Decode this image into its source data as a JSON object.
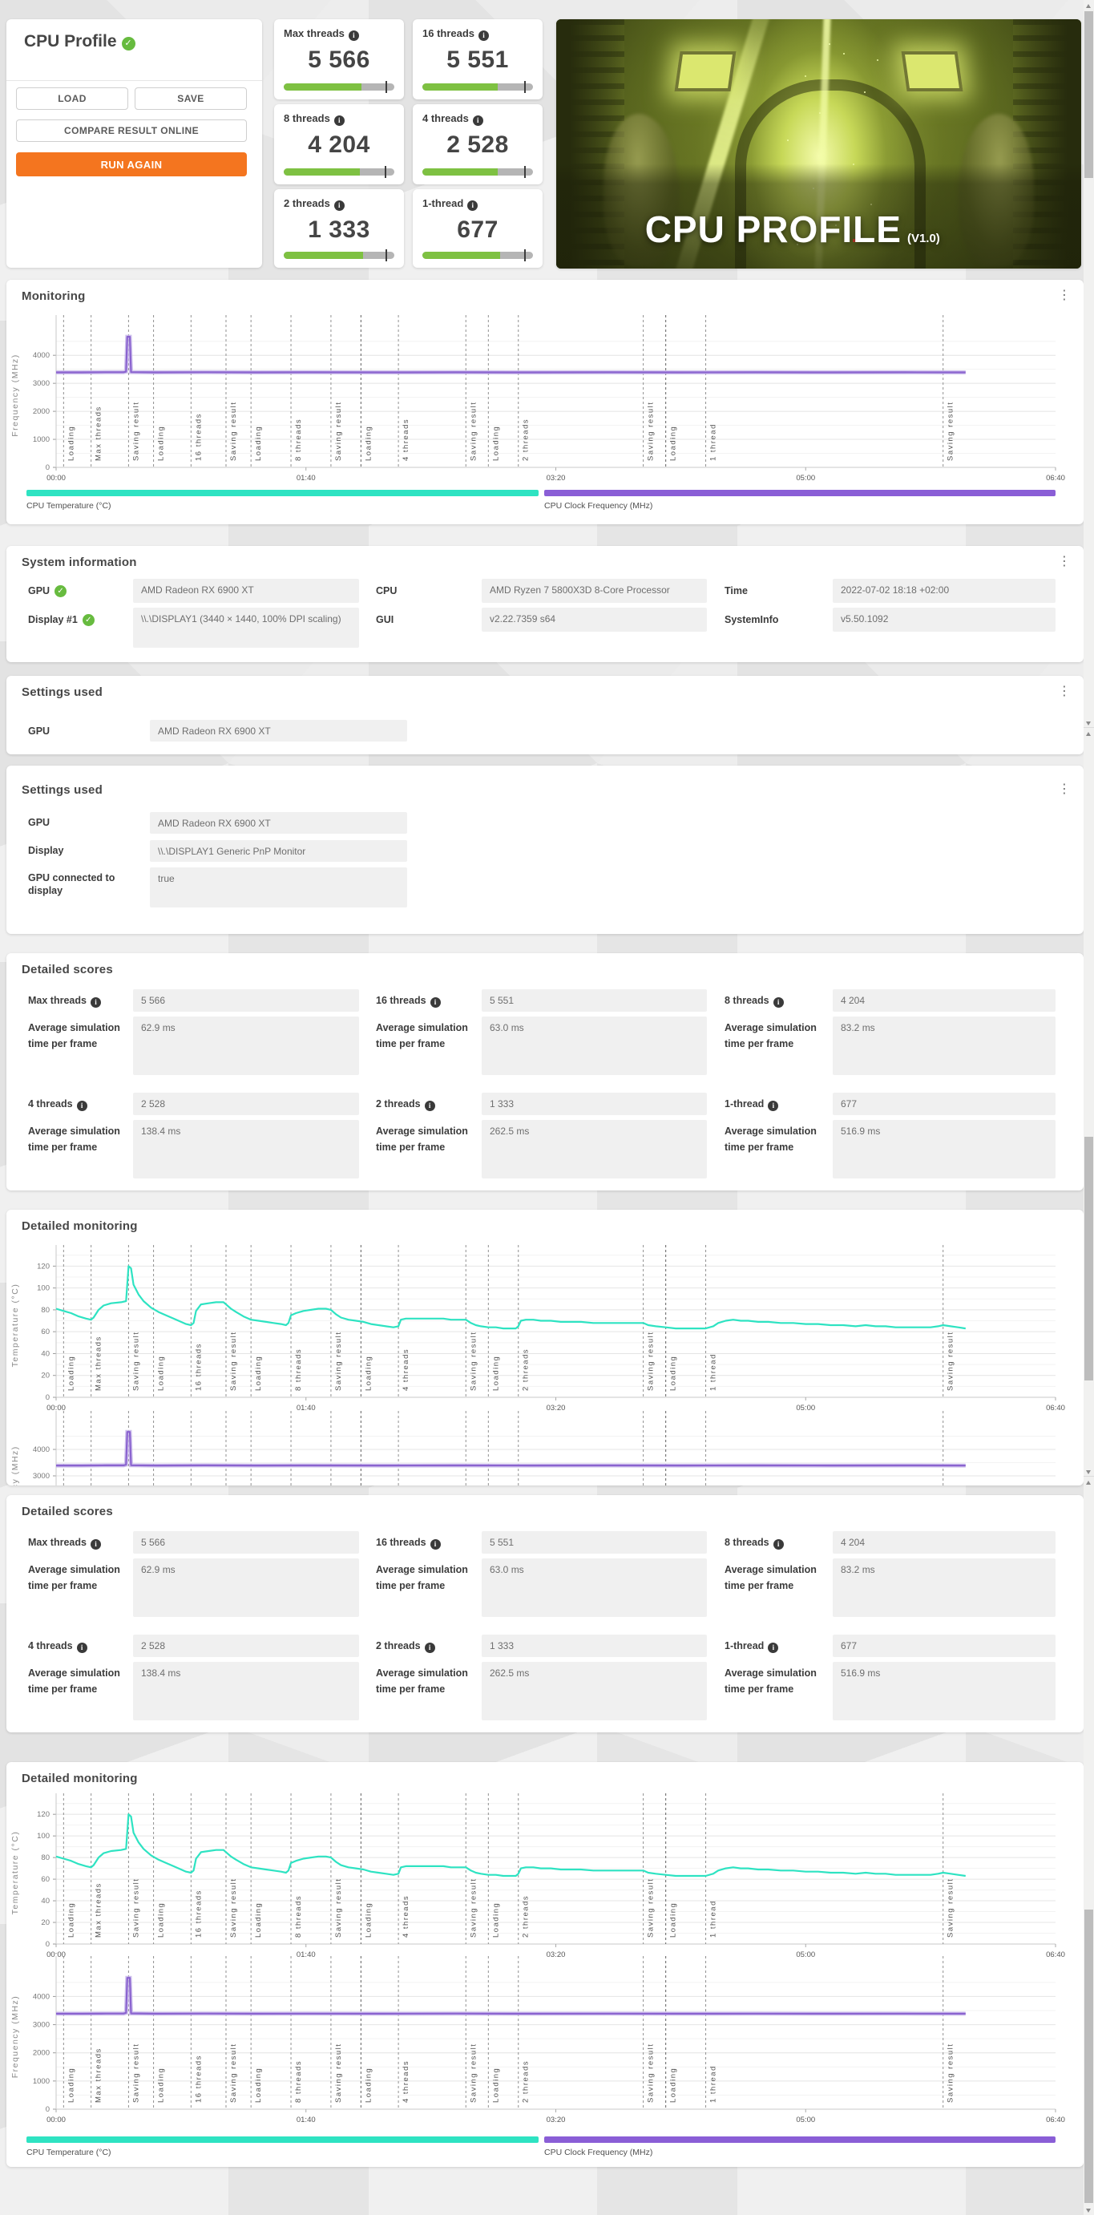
{
  "profile_card": {
    "title": "CPU Profile",
    "buttons": {
      "load": "LOAD",
      "save": "SAVE",
      "compare": "COMPARE RESULT ONLINE",
      "run_again": "RUN AGAIN"
    }
  },
  "score_tiles": [
    {
      "label": "Max threads",
      "score": "5 566",
      "bar_fill": 0.7,
      "bar_marker": 0.92
    },
    {
      "label": "16 threads",
      "score": "5 551",
      "bar_fill": 0.68,
      "bar_marker": 0.92
    },
    {
      "label": "8 threads",
      "score": "4 204",
      "bar_fill": 0.69,
      "bar_marker": 0.91
    },
    {
      "label": "4 threads",
      "score": "2 528",
      "bar_fill": 0.68,
      "bar_marker": 0.92
    },
    {
      "label": "2 threads",
      "score": "1 333",
      "bar_fill": 0.72,
      "bar_marker": 0.92
    },
    {
      "label": "1-thread",
      "score": "677",
      "bar_fill": 0.7,
      "bar_marker": 0.92
    }
  ],
  "hero": {
    "title": "CPU PROFILE",
    "version": "(V1.0)"
  },
  "monitoring": {
    "title": "Monitoring"
  },
  "system_information": {
    "title": "System information",
    "fields": [
      {
        "label": "GPU",
        "value": "AMD Radeon RX 6900 XT",
        "checked": true,
        "col": 0,
        "row": 0
      },
      {
        "label": "CPU",
        "value": "AMD Ryzen 7 5800X3D 8-Core Processor",
        "col": 1,
        "row": 0
      },
      {
        "label": "Time",
        "value": "2022-07-02 18:18 +02:00",
        "col": 2,
        "row": 0
      },
      {
        "label": "Display #1",
        "value": "\\\\.\\DISPLAY1 (3440 × 1440, 100% DPI scaling)",
        "checked": true,
        "col": 0,
        "row": 1,
        "tall": true
      },
      {
        "label": "GUI",
        "value": "v2.22.7359 s64",
        "col": 1,
        "row": 1
      },
      {
        "label": "SystemInfo",
        "value": "v5.50.1092",
        "col": 2,
        "row": 1
      }
    ]
  },
  "settings_used_1": {
    "title": "Settings used",
    "fields": [
      {
        "label": "GPU",
        "value": "AMD Radeon RX 6900 XT"
      }
    ]
  },
  "settings_used_2": {
    "title": "Settings used",
    "fields": [
      {
        "label": "GPU",
        "value": "AMD Radeon RX 6900 XT"
      },
      {
        "label": "Display",
        "value": "\\\\.\\DISPLAY1 Generic PnP Monitor"
      },
      {
        "label": "GPU connected to display",
        "value": "true",
        "tall": true
      }
    ]
  },
  "detailed_scores": {
    "title": "Detailed scores",
    "avg_label": "Average simulation time per frame",
    "entries": [
      {
        "label": "Max threads",
        "score": "5 566",
        "avg": "62.9 ms"
      },
      {
        "label": "16 threads",
        "score": "5 551",
        "avg": "63.0 ms"
      },
      {
        "label": "8 threads",
        "score": "4 204",
        "avg": "83.2 ms"
      },
      {
        "label": "4 threads",
        "score": "2 528",
        "avg": "138.4 ms"
      },
      {
        "label": "2 threads",
        "score": "1 333",
        "avg": "262.5 ms"
      },
      {
        "label": "1-thread",
        "score": "677",
        "avg": "516.9 ms"
      }
    ]
  },
  "detailed_monitoring": {
    "title": "Detailed monitoring"
  },
  "colors": {
    "accent_orange": "#f4751f",
    "bar_green": "#7ec142",
    "check_green": "#67bb3f",
    "temperature": "#2ee3c2",
    "frequency": "#8a63cf",
    "frequency_underlay": "#c3b2e8"
  },
  "chart_data": {
    "type": "line",
    "x_max_seconds": 400,
    "x_ticks": [
      {
        "label": "00:00",
        "t": 0
      },
      {
        "label": "01:40",
        "t": 100
      },
      {
        "label": "03:20",
        "t": 200
      },
      {
        "label": "05:00",
        "t": 300
      },
      {
        "label": "06:40",
        "t": 400
      }
    ],
    "events": [
      {
        "label": "Loading",
        "t": 3
      },
      {
        "label": "Max threads",
        "t": 14
      },
      {
        "label": "Saving result",
        "t": 29
      },
      {
        "label": "Loading",
        "t": 39
      },
      {
        "label": "16 threads",
        "t": 54
      },
      {
        "label": "Saving result",
        "t": 68
      },
      {
        "label": "Loading",
        "t": 78
      },
      {
        "label": "8 threads",
        "t": 94
      },
      {
        "label": "Saving result",
        "t": 110
      },
      {
        "label": "Loading",
        "t": 122,
        "strong": true
      },
      {
        "label": "4 threads",
        "t": 137
      },
      {
        "label": "Saving result",
        "t": 164
      },
      {
        "label": "Loading",
        "t": 173
      },
      {
        "label": "2 threads",
        "t": 185
      },
      {
        "label": "Saving result",
        "t": 235
      },
      {
        "label": "Loading",
        "t": 244,
        "strong": true
      },
      {
        "label": "1 thread",
        "t": 260
      },
      {
        "label": "Saving result",
        "t": 355
      }
    ],
    "series": {
      "temperature": {
        "legend": "CPU Temperature (°C)",
        "unit": "°C",
        "color": "#2ee3c2",
        "points": [
          [
            0,
            81
          ],
          [
            3,
            79
          ],
          [
            6,
            77
          ],
          [
            9,
            74
          ],
          [
            12,
            72
          ],
          [
            14,
            71
          ],
          [
            15,
            73
          ],
          [
            17,
            80
          ],
          [
            19,
            84
          ],
          [
            22,
            86
          ],
          [
            26,
            87
          ],
          [
            28,
            88
          ],
          [
            29,
            120
          ],
          [
            30,
            118
          ],
          [
            31,
            103
          ],
          [
            33,
            94
          ],
          [
            35,
            88
          ],
          [
            38,
            82
          ],
          [
            41,
            78
          ],
          [
            44,
            75
          ],
          [
            47,
            72
          ],
          [
            50,
            69
          ],
          [
            52,
            67
          ],
          [
            54,
            66
          ],
          [
            55,
            68
          ],
          [
            56,
            79
          ],
          [
            58,
            85
          ],
          [
            61,
            86
          ],
          [
            64,
            87
          ],
          [
            67,
            87
          ],
          [
            68,
            85
          ],
          [
            70,
            81
          ],
          [
            72,
            78
          ],
          [
            75,
            74
          ],
          [
            78,
            71
          ],
          [
            81,
            70
          ],
          [
            84,
            69
          ],
          [
            87,
            68
          ],
          [
            90,
            67
          ],
          [
            92,
            66
          ],
          [
            93,
            68
          ],
          [
            94,
            75
          ],
          [
            96,
            77
          ],
          [
            99,
            79
          ],
          [
            102,
            80
          ],
          [
            105,
            81
          ],
          [
            108,
            81
          ],
          [
            110,
            80
          ],
          [
            112,
            76
          ],
          [
            114,
            73
          ],
          [
            117,
            71
          ],
          [
            120,
            70
          ],
          [
            123,
            69
          ],
          [
            126,
            67
          ],
          [
            129,
            66
          ],
          [
            132,
            65
          ],
          [
            135,
            64
          ],
          [
            137,
            65
          ],
          [
            138,
            71
          ],
          [
            140,
            72
          ],
          [
            145,
            72
          ],
          [
            150,
            72
          ],
          [
            155,
            72
          ],
          [
            158,
            71
          ],
          [
            162,
            71
          ],
          [
            164,
            71
          ],
          [
            166,
            68
          ],
          [
            168,
            66
          ],
          [
            170,
            65
          ],
          [
            173,
            64
          ],
          [
            176,
            64
          ],
          [
            179,
            63
          ],
          [
            182,
            63
          ],
          [
            184,
            63
          ],
          [
            185,
            65
          ],
          [
            186,
            70
          ],
          [
            188,
            71
          ],
          [
            191,
            71
          ],
          [
            194,
            70
          ],
          [
            198,
            70
          ],
          [
            202,
            69
          ],
          [
            206,
            69
          ],
          [
            210,
            69
          ],
          [
            215,
            68
          ],
          [
            220,
            68
          ],
          [
            225,
            68
          ],
          [
            230,
            68
          ],
          [
            235,
            68
          ],
          [
            237,
            66
          ],
          [
            240,
            65
          ],
          [
            244,
            64
          ],
          [
            248,
            63
          ],
          [
            252,
            63
          ],
          [
            256,
            63
          ],
          [
            260,
            63
          ],
          [
            263,
            65
          ],
          [
            265,
            68
          ],
          [
            268,
            70
          ],
          [
            271,
            71
          ],
          [
            274,
            70
          ],
          [
            277,
            70
          ],
          [
            281,
            69
          ],
          [
            285,
            69
          ],
          [
            290,
            68
          ],
          [
            295,
            68
          ],
          [
            300,
            67
          ],
          [
            305,
            67
          ],
          [
            310,
            66
          ],
          [
            315,
            66
          ],
          [
            320,
            65
          ],
          [
            324,
            66
          ],
          [
            328,
            65
          ],
          [
            332,
            65
          ],
          [
            336,
            64
          ],
          [
            340,
            64
          ],
          [
            345,
            64
          ],
          [
            350,
            64
          ],
          [
            353,
            65
          ],
          [
            355,
            66
          ],
          [
            358,
            65
          ],
          [
            361,
            64
          ],
          [
            364,
            63
          ]
        ]
      },
      "frequency": {
        "legend": "CPU Clock Frequency (MHz)",
        "unit": "MHz",
        "color": "#8a63cf",
        "underlay_color": "#c3b2e8",
        "points": [
          [
            0,
            3390
          ],
          [
            10,
            3390
          ],
          [
            20,
            3395
          ],
          [
            27,
            3395
          ],
          [
            28,
            3420
          ],
          [
            28.5,
            4660
          ],
          [
            29.5,
            4660
          ],
          [
            30,
            3400
          ],
          [
            40,
            3390
          ],
          [
            60,
            3395
          ],
          [
            80,
            3390
          ],
          [
            100,
            3392
          ],
          [
            130,
            3390
          ],
          [
            160,
            3394
          ],
          [
            190,
            3390
          ],
          [
            220,
            3392
          ],
          [
            250,
            3390
          ],
          [
            280,
            3393
          ],
          [
            310,
            3390
          ],
          [
            340,
            3392
          ],
          [
            364,
            3390
          ]
        ]
      }
    },
    "charts": [
      {
        "id": "mon-freq",
        "series": "frequency",
        "ylabel": "Frequency (MHz)",
        "yticks": [
          0,
          1000,
          2000,
          3000,
          4000
        ],
        "ymax": 5150,
        "show_x_labels": true
      },
      {
        "id": "dm1-temp",
        "series": "temperature",
        "ylabel": "Temperature (°C)",
        "yticks": [
          0,
          20,
          40,
          60,
          80,
          100,
          120
        ],
        "ymax": 132,
        "show_x_labels": true
      },
      {
        "id": "dm1-freq",
        "series": "frequency",
        "ylabel": "Frequency (MHz)",
        "yticks": [
          0,
          1000,
          2000,
          3000,
          4000
        ],
        "ymax": 5150,
        "show_x_labels": false,
        "clipped": true
      },
      {
        "id": "dm2-temp",
        "series": "temperature",
        "ylabel": "Temperature (°C)",
        "yticks": [
          0,
          20,
          40,
          60,
          80,
          100,
          120
        ],
        "ymax": 132,
        "show_x_labels": true
      },
      {
        "id": "dm2-freq",
        "series": "frequency",
        "ylabel": "Frequency (MHz)",
        "yticks": [
          0,
          1000,
          2000,
          3000,
          4000
        ],
        "ymax": 5150,
        "show_x_labels": true
      }
    ]
  }
}
